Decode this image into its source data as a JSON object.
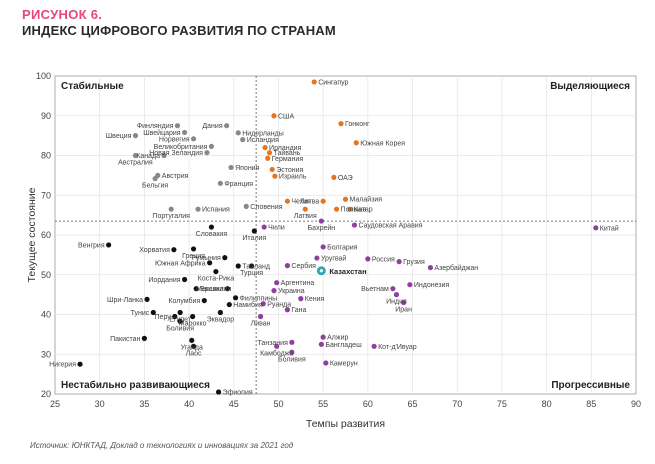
{
  "figure": {
    "number": "РИСУНОК 6.",
    "title": "ИНДЕКС ЦИФРОВОГО РАЗВИТИЯ ПО СТРАНАМ",
    "source": "Источник: ЮНКТАД, Доклад о технологиях и инновациях за 2021 год"
  },
  "colors": {
    "stable": "#888888",
    "leading": "#e8741c",
    "progressive": "#8e3fa0",
    "unstable": "#111111",
    "kazakhstan": "#2ea7b8",
    "title_accent": "#e8467c"
  },
  "chart_data": {
    "type": "scatter",
    "title": "Индекс цифрового развития по странам",
    "xlabel": "Темпы развития",
    "ylabel": "Текущее состояние",
    "xlim": [
      25,
      90
    ],
    "ylim": [
      20,
      100
    ],
    "xticks": [
      25,
      30,
      35,
      40,
      45,
      50,
      55,
      60,
      65,
      70,
      75,
      80,
      85,
      90
    ],
    "yticks": [
      20,
      30,
      40,
      50,
      60,
      70,
      80,
      90,
      100
    ],
    "threshold_x": 47.5,
    "threshold_y": 63.5,
    "quadrants": {
      "top_left": "Стабильные",
      "top_right": "Выделяющиеся",
      "bottom_left": "Нестабильно развивающиеся",
      "bottom_right": "Прогрессивные"
    },
    "series": [
      {
        "name": "Стабильные",
        "color_key": "stable",
        "points": [
          {
            "label": "Финляндия",
            "x": 38.7,
            "y": 87.5
          },
          {
            "label": "Дания",
            "x": 44.2,
            "y": 87.5
          },
          {
            "label": "Швейцария",
            "x": 39.5,
            "y": 85.8
          },
          {
            "label": "Нидерланды",
            "x": 45.5,
            "y": 85.7
          },
          {
            "label": "Швеция",
            "x": 34.0,
            "y": 85.0
          },
          {
            "label": "Норвегия",
            "x": 40.5,
            "y": 84.2
          },
          {
            "label": "Исландия",
            "x": 46.0,
            "y": 84.0
          },
          {
            "label": "Великобритания",
            "x": 42.5,
            "y": 82.3
          },
          {
            "label": "Новая Зеландия",
            "x": 42.0,
            "y": 80.7
          },
          {
            "label": "Австралия",
            "x": 34.0,
            "y": 80.0
          },
          {
            "label": "Канада",
            "x": 37.2,
            "y": 80.0
          },
          {
            "label": "Япония",
            "x": 44.7,
            "y": 77.0
          },
          {
            "label": "Австрия",
            "x": 36.5,
            "y": 75.0
          },
          {
            "label": "Бельгия",
            "x": 36.2,
            "y": 74.2
          },
          {
            "label": "Франция",
            "x": 43.5,
            "y": 73.0
          },
          {
            "label": "Португалия",
            "x": 38.0,
            "y": 66.5
          },
          {
            "label": "Испания",
            "x": 41.0,
            "y": 66.5
          },
          {
            "label": "Словения",
            "x": 46.4,
            "y": 67.2
          }
        ]
      },
      {
        "name": "Выделяющиеся",
        "color_key": "leading",
        "points": [
          {
            "label": "Сингапур",
            "x": 54.0,
            "y": 98.5
          },
          {
            "label": "США",
            "x": 49.5,
            "y": 90.0
          },
          {
            "label": "Гонконг",
            "x": 57.0,
            "y": 88.0
          },
          {
            "label": "Южная Корея",
            "x": 58.7,
            "y": 83.2
          },
          {
            "label": "Ирландия",
            "x": 48.5,
            "y": 82.0
          },
          {
            "label": "Тайвань",
            "x": 49.0,
            "y": 80.7
          },
          {
            "label": "Германия",
            "x": 48.8,
            "y": 79.3
          },
          {
            "label": "Эстония",
            "x": 49.3,
            "y": 76.5
          },
          {
            "label": "Израиль",
            "x": 49.6,
            "y": 74.8
          },
          {
            "label": "ОАЭ",
            "x": 56.2,
            "y": 74.5
          },
          {
            "label": "Чехия",
            "x": 51.0,
            "y": 68.5
          },
          {
            "label": "Литва",
            "x": 55.0,
            "y": 68.5
          },
          {
            "label": "Малайзия",
            "x": 57.5,
            "y": 69.0
          },
          {
            "label": "Латвия",
            "x": 53.0,
            "y": 66.5
          },
          {
            "label": "Польша",
            "x": 56.5,
            "y": 66.5
          },
          {
            "label": "Катар",
            "x": 58.0,
            "y": 66.5
          }
        ]
      },
      {
        "name": "Нестабильно развивающиеся",
        "color_key": "unstable",
        "points": [
          {
            "label": "Словакия",
            "x": 42.5,
            "y": 62.0
          },
          {
            "label": "Италия",
            "x": 47.3,
            "y": 61.0
          },
          {
            "label": "Венгрия",
            "x": 31.0,
            "y": 57.5
          },
          {
            "label": "Хорватия",
            "x": 38.3,
            "y": 56.3
          },
          {
            "label": "Греция",
            "x": 40.5,
            "y": 56.5
          },
          {
            "label": "Румыния",
            "x": 44.0,
            "y": 54.3
          },
          {
            "label": "Южная Африка",
            "x": 42.3,
            "y": 53.0
          },
          {
            "label": "Таиланд",
            "x": 45.5,
            "y": 52.2
          },
          {
            "label": "Турция",
            "x": 47.0,
            "y": 52.2
          },
          {
            "label": "Коста-Рика",
            "x": 43.0,
            "y": 50.8
          },
          {
            "label": "Иордания",
            "x": 39.5,
            "y": 48.8
          },
          {
            "label": "Мексика",
            "x": 44.3,
            "y": 46.5
          },
          {
            "label": "Бразилия",
            "x": 40.8,
            "y": 46.5
          },
          {
            "label": "Филиппины",
            "x": 45.2,
            "y": 44.2
          },
          {
            "label": "Шри-Ланка",
            "x": 35.3,
            "y": 43.8
          },
          {
            "label": "Колумбия",
            "x": 41.7,
            "y": 43.5
          },
          {
            "label": "Намибия",
            "x": 44.5,
            "y": 42.5
          },
          {
            "label": "Тунис",
            "x": 36.0,
            "y": 40.5
          },
          {
            "label": "Египет",
            "x": 39.0,
            "y": 40.5
          },
          {
            "label": "Эквадор",
            "x": 43.5,
            "y": 40.5
          },
          {
            "label": "Перу",
            "x": 38.4,
            "y": 39.5
          },
          {
            "label": "Марокко",
            "x": 40.4,
            "y": 39.5
          },
          {
            "label": "Боливия",
            "x": 39.0,
            "y": 38.3
          },
          {
            "label": "Пакистан",
            "x": 35.0,
            "y": 34.0
          },
          {
            "label": "Уганда",
            "x": 40.3,
            "y": 33.5
          },
          {
            "label": "Лаос",
            "x": 40.5,
            "y": 32.0
          },
          {
            "label": "Нигерия",
            "x": 27.8,
            "y": 27.5
          },
          {
            "label": "Эфиопия",
            "x": 43.3,
            "y": 20.5
          }
        ]
      },
      {
        "name": "Прогрессивные",
        "color_key": "progressive",
        "points": [
          {
            "label": "Чили",
            "x": 48.4,
            "y": 62.0
          },
          {
            "label": "Бахрейн",
            "x": 54.8,
            "y": 63.5
          },
          {
            "label": "Саудовская Аравия",
            "x": 58.5,
            "y": 62.5
          },
          {
            "label": "Китай",
            "x": 85.5,
            "y": 61.8
          },
          {
            "label": "Болгария",
            "x": 55.0,
            "y": 57.0
          },
          {
            "label": "Уругвай",
            "x": 54.3,
            "y": 54.2
          },
          {
            "label": "Россия",
            "x": 60.0,
            "y": 54.0
          },
          {
            "label": "Грузия",
            "x": 63.5,
            "y": 53.3
          },
          {
            "label": "Сербия",
            "x": 51.0,
            "y": 52.3
          },
          {
            "label": "Азербайджан",
            "x": 67.0,
            "y": 51.8
          },
          {
            "label": "Аргентина",
            "x": 49.8,
            "y": 48.0
          },
          {
            "label": "Вьетнам",
            "x": 62.8,
            "y": 46.5
          },
          {
            "label": "Индонезия",
            "x": 64.7,
            "y": 47.5
          },
          {
            "label": "Украина",
            "x": 49.5,
            "y": 46.0
          },
          {
            "label": "Индия",
            "x": 63.2,
            "y": 45.0
          },
          {
            "label": "Кения",
            "x": 52.5,
            "y": 44.0
          },
          {
            "label": "Руанда",
            "x": 48.3,
            "y": 42.7
          },
          {
            "label": "Гана",
            "x": 51.0,
            "y": 41.2
          },
          {
            "label": "Иран",
            "x": 64.0,
            "y": 43.0
          },
          {
            "label": "Ливан",
            "x": 48.0,
            "y": 39.5
          },
          {
            "label": "Алжир",
            "x": 55.0,
            "y": 34.3
          },
          {
            "label": "Танзания",
            "x": 51.5,
            "y": 33.0
          },
          {
            "label": "Бангладеш",
            "x": 54.8,
            "y": 32.5
          },
          {
            "label": "Кот-д'Ивуар",
            "x": 60.7,
            "y": 32.0
          },
          {
            "label": "Камбоджа",
            "x": 49.8,
            "y": 32.0
          },
          {
            "label": "Боливия",
            "x": 51.5,
            "y": 30.5
          },
          {
            "label": "Камерун",
            "x": 55.3,
            "y": 27.8
          }
        ]
      },
      {
        "name": "Казахстан",
        "color_key": "kazakhstan",
        "highlight": true,
        "points": [
          {
            "label": "Казахстан",
            "x": 54.8,
            "y": 51.0
          }
        ]
      }
    ]
  }
}
